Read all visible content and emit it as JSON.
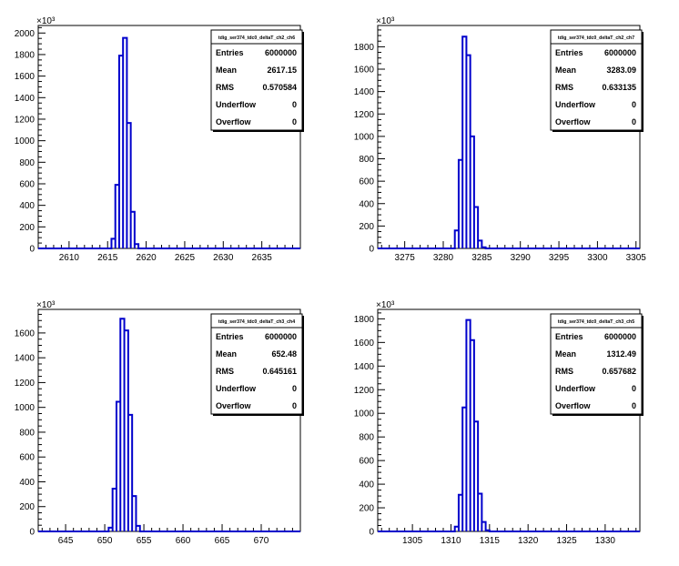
{
  "chart_data": [
    {
      "type": "bar",
      "stats_box": {
        "title": "tdig_ser374_tdc0_deltaT_ch2_ch6",
        "rows": [
          {
            "label": "Entries",
            "value": "6000000"
          },
          {
            "label": "Mean",
            "value": "2617.15"
          },
          {
            "label": "RMS",
            "value": "0.570584"
          },
          {
            "label": "Underflow",
            "value": "0"
          },
          {
            "label": "Overflow",
            "value": "0"
          }
        ]
      },
      "exponent_label": "×10³",
      "xlim": [
        2606,
        2640
      ],
      "ylim": [
        0,
        2070
      ],
      "x_ticks": [
        2610,
        2615,
        2620,
        2625,
        2630,
        2635
      ],
      "y_ticks": [
        0,
        200,
        400,
        600,
        800,
        1000,
        1200,
        1400,
        1600,
        1800,
        2000
      ],
      "y_tick_labels": [
        "0",
        "200",
        "400",
        "600",
        "800",
        "1000",
        "1200",
        "1400",
        "1600",
        "1800",
        "2000"
      ],
      "bin_width": 0.5,
      "bins": [
        {
          "x": 2615.5,
          "y": 90
        },
        {
          "x": 2616.0,
          "y": 590
        },
        {
          "x": 2616.5,
          "y": 1790
        },
        {
          "x": 2617.0,
          "y": 1955
        },
        {
          "x": 2617.5,
          "y": 1165
        },
        {
          "x": 2618.0,
          "y": 340
        },
        {
          "x": 2618.5,
          "y": 40
        }
      ]
    },
    {
      "type": "bar",
      "stats_box": {
        "title": "tdig_ser374_tdc0_deltaT_ch2_ch7",
        "rows": [
          {
            "label": "Entries",
            "value": "6000000"
          },
          {
            "label": "Mean",
            "value": "3283.09"
          },
          {
            "label": "RMS",
            "value": "0.633135"
          },
          {
            "label": "Underflow",
            "value": "0"
          },
          {
            "label": "Overflow",
            "value": "0"
          }
        ]
      },
      "exponent_label": "×10³",
      "xlim": [
        3271.5,
        3305.5
      ],
      "ylim": [
        0,
        1990
      ],
      "x_ticks": [
        3275,
        3280,
        3285,
        3290,
        3295,
        3300,
        3305
      ],
      "y_ticks": [
        0,
        200,
        400,
        600,
        800,
        1000,
        1200,
        1400,
        1600,
        1800
      ],
      "y_tick_labels": [
        "0",
        "200",
        "400",
        "600",
        "800",
        "1000",
        "1200",
        "1400",
        "1600",
        "1800"
      ],
      "bin_width": 0.5,
      "bins": [
        {
          "x": 3281.5,
          "y": 160
        },
        {
          "x": 3282.0,
          "y": 790
        },
        {
          "x": 3282.5,
          "y": 1890
        },
        {
          "x": 3283.0,
          "y": 1725
        },
        {
          "x": 3283.5,
          "y": 1000
        },
        {
          "x": 3284.0,
          "y": 370
        },
        {
          "x": 3284.5,
          "y": 70
        },
        {
          "x": 3285.0,
          "y": 10
        }
      ]
    },
    {
      "type": "bar",
      "stats_box": {
        "title": "tdig_ser374_tdc0_deltaT_ch3_ch4",
        "rows": [
          {
            "label": "Entries",
            "value": "6000000"
          },
          {
            "label": "Mean",
            "value": "652.48"
          },
          {
            "label": "RMS",
            "value": "0.645161"
          },
          {
            "label": "Underflow",
            "value": "0"
          },
          {
            "label": "Overflow",
            "value": "0"
          }
        ]
      },
      "exponent_label": "×10³",
      "xlim": [
        641.5,
        675
      ],
      "ylim": [
        0,
        1790
      ],
      "x_ticks": [
        645,
        650,
        655,
        660,
        665,
        670
      ],
      "y_ticks": [
        0,
        200,
        400,
        600,
        800,
        1000,
        1200,
        1400,
        1600
      ],
      "y_tick_labels": [
        "0",
        "200",
        "400",
        "600",
        "800",
        "1000",
        "1200",
        "1400",
        "1600"
      ],
      "bin_width": 0.5,
      "bins": [
        {
          "x": 650.5,
          "y": 30
        },
        {
          "x": 651.0,
          "y": 345
        },
        {
          "x": 651.5,
          "y": 1045
        },
        {
          "x": 652.0,
          "y": 1715
        },
        {
          "x": 652.5,
          "y": 1620
        },
        {
          "x": 653.0,
          "y": 940
        },
        {
          "x": 653.5,
          "y": 285
        },
        {
          "x": 654.0,
          "y": 45
        }
      ]
    },
    {
      "type": "bar",
      "stats_box": {
        "title": "tdig_ser374_tdc0_deltaT_ch3_ch5",
        "rows": [
          {
            "label": "Entries",
            "value": "6000000"
          },
          {
            "label": "Mean",
            "value": "1312.49"
          },
          {
            "label": "RMS",
            "value": "0.657682"
          },
          {
            "label": "Underflow",
            "value": "0"
          },
          {
            "label": "Overflow",
            "value": "0"
          }
        ]
      },
      "exponent_label": "×10³",
      "xlim": [
        1300.5,
        1334.5
      ],
      "ylim": [
        0,
        1880
      ],
      "x_ticks": [
        1305,
        1310,
        1315,
        1320,
        1325,
        1330
      ],
      "y_ticks": [
        0,
        200,
        400,
        600,
        800,
        1000,
        1200,
        1400,
        1600,
        1800
      ],
      "y_tick_labels": [
        "0",
        "200",
        "400",
        "600",
        "800",
        "1000",
        "1200",
        "1400",
        "1600",
        "1800"
      ],
      "bin_width": 0.5,
      "bins": [
        {
          "x": 1310.5,
          "y": 40
        },
        {
          "x": 1311.0,
          "y": 310
        },
        {
          "x": 1311.5,
          "y": 1050
        },
        {
          "x": 1312.0,
          "y": 1790
        },
        {
          "x": 1312.5,
          "y": 1620
        },
        {
          "x": 1313.0,
          "y": 930
        },
        {
          "x": 1313.5,
          "y": 320
        },
        {
          "x": 1314.0,
          "y": 80
        },
        {
          "x": 1314.5,
          "y": 10
        }
      ]
    }
  ],
  "style": {
    "histogram_color": "#0000cc",
    "axis_color": "#000000",
    "background": "#ffffff"
  }
}
